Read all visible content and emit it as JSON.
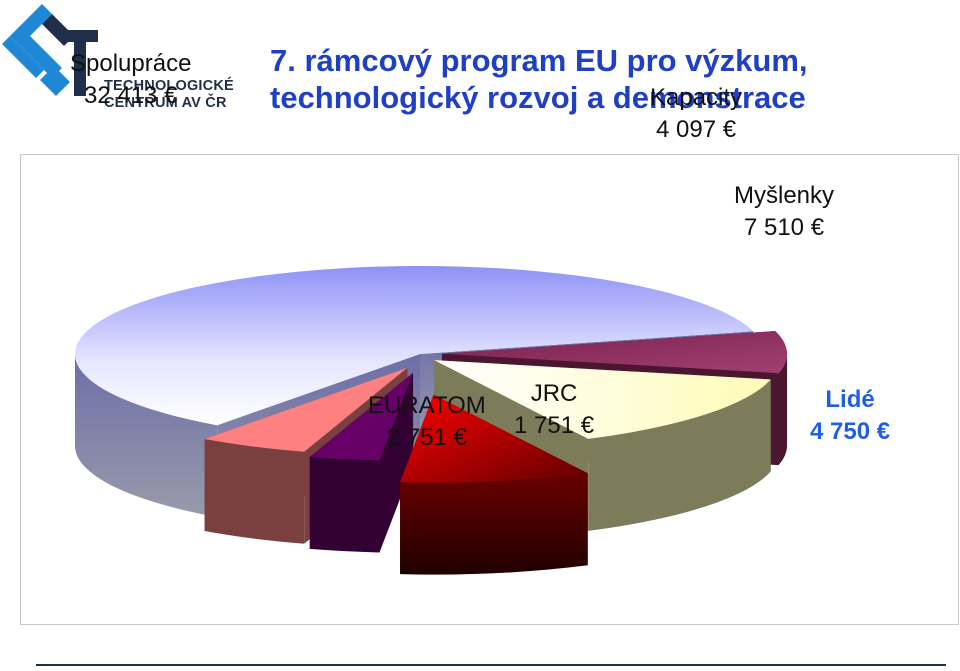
{
  "header": {
    "title_line1": "7. rámcový program EU pro výzkum,",
    "title_line2": "technologický rozvoj a demonstrace",
    "logo_line1": "TECHNOLOGICKÉ",
    "logo_line2": "CENTRUM AV ČR",
    "logo_icon": "tc-logo-icon"
  },
  "chart_data": {
    "type": "pie",
    "style": "3d-exploded",
    "unit": "€",
    "slices": [
      {
        "name": "Spolupráce",
        "value": 32413,
        "value_label": "32 413 €",
        "color": "#9a9cf8",
        "side_color": "#5a5c8a"
      },
      {
        "name": "Kapacity",
        "value": 4097,
        "value_label": "4 097 €",
        "color": "#8a2a5a",
        "side_color": "#4a1630"
      },
      {
        "name": "Myšlenky",
        "value": 7510,
        "value_label": "7 510 €",
        "color": "#fffcc8",
        "side_color": "#7c7c5a"
      },
      {
        "name": "Lidé",
        "value": 4750,
        "value_label": "4 750 €",
        "color": "#e00000",
        "side_color": "#5a0000",
        "highlight": true
      },
      {
        "name": "JRC",
        "value": 1751,
        "value_label": "1 751 €",
        "color": "#660066",
        "side_color": "#330033"
      },
      {
        "name": "EURATOM",
        "value": 2751,
        "value_label": "2 751 €",
        "color": "#ff8080",
        "side_color": "#7a4040"
      }
    ]
  }
}
